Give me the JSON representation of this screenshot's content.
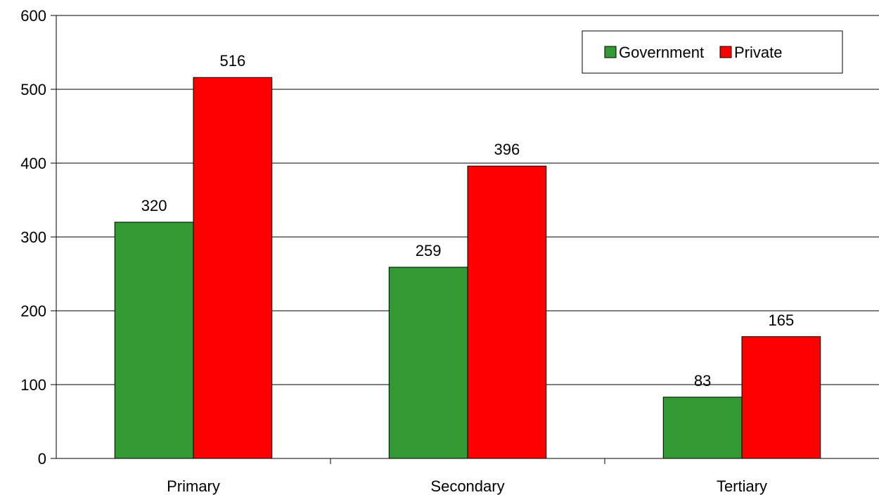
{
  "chart_data": {
    "type": "bar",
    "categories": [
      "Primary",
      "Secondary",
      "Tertiary"
    ],
    "series": [
      {
        "name": "Government",
        "values": [
          320,
          259,
          83
        ],
        "color": "#339933"
      },
      {
        "name": "Private",
        "values": [
          516,
          396,
          165
        ],
        "color": "#ff0000"
      }
    ],
    "title": "",
    "xlabel": "",
    "ylabel": "",
    "ylim": [
      0,
      600
    ],
    "yticks": [
      0,
      100,
      200,
      300,
      400,
      500,
      600
    ],
    "grid": true,
    "legend": "top-right",
    "data_labels": true
  }
}
